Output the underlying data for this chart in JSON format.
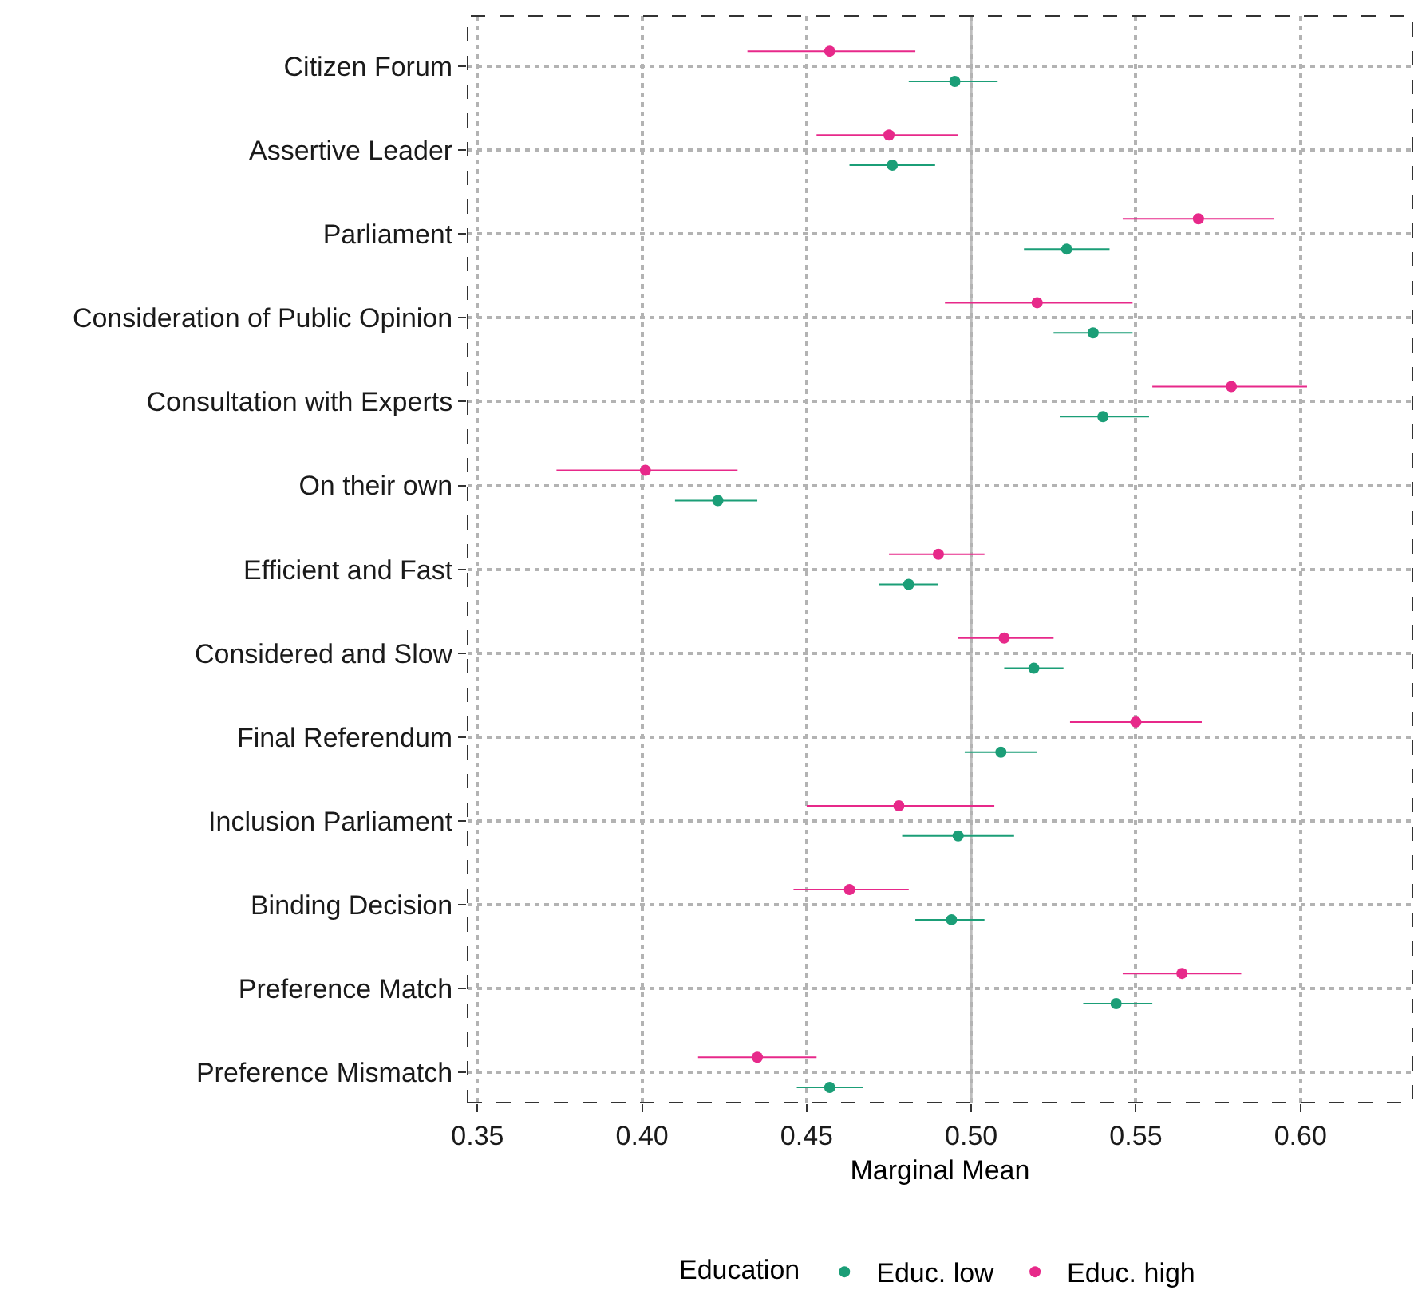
{
  "chart_data": {
    "type": "scatter",
    "xlabel": "Marginal Mean",
    "legend_title": "Education",
    "legend": "bottom",
    "grid": true,
    "marker": "circle",
    "categories": [
      "Citizen Forum",
      "Assertive Leader",
      "Parliament",
      "Consideration of Public Opinion",
      "Consultation with Experts",
      "On their own",
      "Efficient and Fast",
      "Considered and Slow",
      "Final Referendum",
      "Inclusion Parliament",
      "Binding Decision",
      "Preference Match",
      "Preference Mismatch"
    ],
    "orientation": "horizontal",
    "xlim": [
      0.347,
      0.634
    ],
    "xticks": [
      {
        "value": 0.35,
        "label": "0.35"
      },
      {
        "value": 0.4,
        "label": "0.40"
      },
      {
        "value": 0.45,
        "label": "0.45"
      },
      {
        "value": 0.5,
        "label": "0.50"
      },
      {
        "value": 0.55,
        "label": "0.55"
      },
      {
        "value": 0.6,
        "label": "0.60"
      }
    ],
    "ref_lines": [
      {
        "axis": "x",
        "value": 0.5,
        "color": "#bebebe"
      }
    ],
    "series": [
      {
        "name": "Educ. low",
        "color": "#1b9e77",
        "values": [
          0.495,
          0.476,
          0.529,
          0.537,
          0.54,
          0.423,
          0.481,
          0.519,
          0.509,
          0.496,
          0.494,
          0.544,
          0.457
        ],
        "errors": [
          [
            0.481,
            0.508
          ],
          [
            0.463,
            0.489
          ],
          [
            0.516,
            0.542
          ],
          [
            0.525,
            0.549
          ],
          [
            0.527,
            0.554
          ],
          [
            0.41,
            0.435
          ],
          [
            0.472,
            0.49
          ],
          [
            0.51,
            0.528
          ],
          [
            0.498,
            0.52
          ],
          [
            0.479,
            0.513
          ],
          [
            0.483,
            0.504
          ],
          [
            0.534,
            0.555
          ],
          [
            0.447,
            0.467
          ]
        ]
      },
      {
        "name": "Educ. high",
        "color": "#e7298a",
        "values": [
          0.457,
          0.475,
          0.569,
          0.52,
          0.579,
          0.401,
          0.49,
          0.51,
          0.55,
          0.478,
          0.463,
          0.564,
          0.435
        ],
        "errors": [
          [
            0.432,
            0.483
          ],
          [
            0.453,
            0.496
          ],
          [
            0.546,
            0.592
          ],
          [
            0.492,
            0.549
          ],
          [
            0.555,
            0.602
          ],
          [
            0.374,
            0.429
          ],
          [
            0.475,
            0.504
          ],
          [
            0.496,
            0.525
          ],
          [
            0.53,
            0.57
          ],
          [
            0.45,
            0.507
          ],
          [
            0.446,
            0.481
          ],
          [
            0.546,
            0.582
          ],
          [
            0.417,
            0.453
          ]
        ]
      }
    ]
  }
}
